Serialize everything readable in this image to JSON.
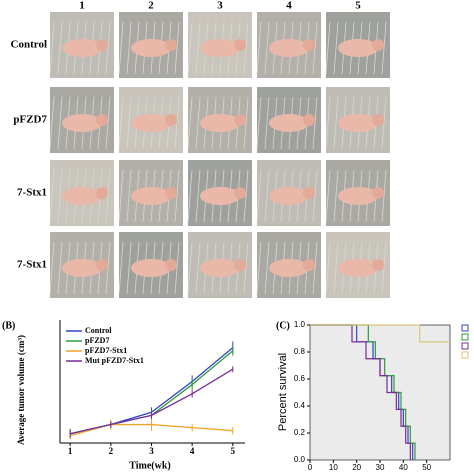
{
  "photo_grid": {
    "column_labels": [
      "1",
      "2",
      "3",
      "4",
      "5"
    ],
    "row_labels": [
      "Control",
      "pFZD7",
      "7-Stx1",
      "7-Stx1"
    ]
  },
  "chart_data": [
    {
      "type": "line",
      "panel": "(B)",
      "ylabel": "Average tumor volume (cm³)",
      "xlabel": "Time(wk)",
      "x": [
        1,
        2,
        3,
        4,
        5
      ],
      "xlim": [
        0.75,
        5.3
      ],
      "xticks": [
        1,
        2,
        3,
        4,
        5
      ],
      "ylim": [
        0,
        2
      ],
      "series": [
        {
          "name": "Control",
          "color": "#3344c4",
          "values": [
            0.15,
            0.3,
            0.5,
            1.0,
            1.55
          ],
          "errors": [
            0.08,
            0.05,
            0.08,
            0.1,
            0.1
          ]
        },
        {
          "name": "pFZD7",
          "color": "#2f9a3c",
          "values": [
            0.15,
            0.3,
            0.45,
            0.95,
            1.5
          ],
          "errors": [
            0.08,
            0.05,
            0.08,
            0.1,
            0.08
          ]
        },
        {
          "name": "pFZD7-Stx1",
          "color": "#f0a326",
          "values": [
            0.12,
            0.3,
            0.3,
            0.25,
            0.2
          ],
          "errors": [
            0.06,
            0.08,
            0.1,
            0.06,
            0.06
          ]
        },
        {
          "name": "Mut pFZD7-Stx1",
          "color": "#7a2c98",
          "values": [
            0.15,
            0.3,
            0.45,
            0.8,
            1.2
          ],
          "errors": [
            0.06,
            0.05,
            0.06,
            0.06,
            0.05
          ]
        }
      ]
    },
    {
      "type": "step",
      "panel": "(C)",
      "ylabel": "Percent survival",
      "xlim": [
        0,
        60
      ],
      "xticks": [
        0,
        10,
        20,
        30,
        40,
        50
      ],
      "ylim": [
        0,
        1
      ],
      "yticks": [
        {
          "value": 0,
          "label": "0.0"
        },
        {
          "value": 0.2,
          "label": "0.2"
        },
        {
          "value": 0.4,
          "label": "0.4"
        },
        {
          "value": 0.6,
          "label": "0.6"
        },
        {
          "value": 0.8,
          "label": "0.8"
        },
        {
          "value": 1,
          "label": "1.0"
        }
      ],
      "series": [
        {
          "color": "#3344c4",
          "x": [
            0,
            20,
            27,
            30,
            35,
            38,
            40,
            42,
            44
          ],
          "values": [
            1,
            0.875,
            0.75,
            0.625,
            0.5,
            0.375,
            0.25,
            0.125,
            0
          ]
        },
        {
          "color": "#2f9a3c",
          "x": [
            0,
            25,
            28,
            32,
            36,
            39,
            41,
            43,
            45
          ],
          "values": [
            1,
            0.875,
            0.75,
            0.625,
            0.5,
            0.375,
            0.25,
            0.125,
            0
          ]
        },
        {
          "color": "#7a2c98",
          "x": [
            0,
            18,
            24,
            30,
            33,
            37,
            39,
            41,
            43
          ],
          "values": [
            1,
            0.875,
            0.75,
            0.625,
            0.5,
            0.375,
            0.25,
            0.125,
            0
          ]
        },
        {
          "color": "#d9c77a",
          "x": [
            0,
            47,
            60
          ],
          "values": [
            1,
            0.875,
            0.875
          ]
        }
      ]
    }
  ]
}
